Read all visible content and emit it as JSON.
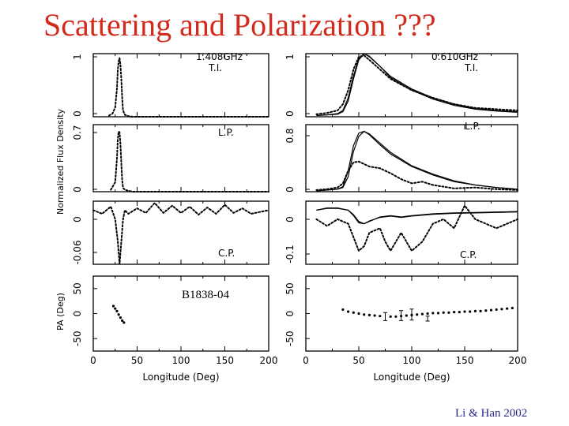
{
  "slide": {
    "title": "Scattering and Polarization ???",
    "credit": "Li & Han 2002",
    "accent_color": "#d22a1b",
    "credit_color": "#2a2a8a"
  },
  "chart_data": [
    {
      "panel": "left-ti",
      "type": "line",
      "title": "1.408GHz",
      "label": "T.I.",
      "ylabel": "Normalized Flux Density",
      "ylim": [
        0,
        1
      ],
      "yticks": [
        "1",
        "0"
      ],
      "xlim": [
        0,
        200
      ],
      "series": [
        {
          "name": "1.408GHz",
          "style": "dotted",
          "x": [
            18,
            22,
            25,
            27,
            28,
            29,
            30,
            31,
            32,
            33,
            34,
            36,
            40,
            45,
            60,
            100,
            200
          ],
          "y": [
            0.02,
            0.05,
            0.15,
            0.45,
            0.75,
            0.88,
            0.93,
            0.82,
            0.6,
            0.3,
            0.1,
            0.03,
            0.01,
            0,
            0,
            0,
            0
          ]
        }
      ]
    },
    {
      "panel": "right-ti",
      "type": "line",
      "title": "0.610GHz",
      "label": "T.I.",
      "ylim": [
        0,
        1
      ],
      "yticks": [
        "1",
        "0"
      ],
      "xlim": [
        0,
        200
      ],
      "series": [
        {
          "name": "solid-a",
          "style": "solid",
          "x": [
            10,
            20,
            30,
            35,
            40,
            45,
            50,
            55,
            60,
            70,
            80,
            100,
            120,
            140,
            160,
            180,
            200
          ],
          "y": [
            0.02,
            0.03,
            0.05,
            0.1,
            0.3,
            0.65,
            0.92,
            1.0,
            0.95,
            0.8,
            0.62,
            0.42,
            0.28,
            0.18,
            0.12,
            0.09,
            0.07
          ]
        },
        {
          "name": "solid-b",
          "style": "solid",
          "x": [
            10,
            20,
            30,
            35,
            40,
            45,
            50,
            55,
            60,
            70,
            80,
            100,
            120,
            140,
            160,
            180,
            200
          ],
          "y": [
            0.02,
            0.03,
            0.04,
            0.08,
            0.25,
            0.6,
            0.9,
            1.0,
            0.96,
            0.8,
            0.64,
            0.44,
            0.3,
            0.2,
            0.13,
            0.1,
            0.08
          ]
        },
        {
          "name": "dotted",
          "style": "dotted",
          "x": [
            10,
            20,
            30,
            35,
            40,
            45,
            50,
            55,
            60,
            70,
            80,
            100,
            120,
            140,
            160,
            180,
            200
          ],
          "y": [
            0.04,
            0.06,
            0.1,
            0.2,
            0.42,
            0.75,
            0.95,
            0.97,
            0.9,
            0.75,
            0.6,
            0.42,
            0.3,
            0.2,
            0.14,
            0.12,
            0.1
          ]
        }
      ]
    },
    {
      "panel": "left-lp",
      "type": "line",
      "label": "L.P.",
      "ylim": [
        0,
        0.7
      ],
      "yticks": [
        "0.7",
        "0"
      ],
      "xlim": [
        0,
        200
      ],
      "series": [
        {
          "name": "1.408GHz",
          "style": "dotted",
          "x": [
            20,
            25,
            27,
            28,
            29,
            30,
            31,
            32,
            33,
            34,
            36,
            40,
            45,
            60,
            100,
            200
          ],
          "y": [
            0.02,
            0.1,
            0.35,
            0.55,
            0.63,
            0.62,
            0.5,
            0.3,
            0.12,
            0.04,
            0.02,
            0.01,
            0,
            0,
            0,
            0
          ]
        }
      ]
    },
    {
      "panel": "right-lp",
      "type": "line",
      "label": "L.P.",
      "ylim": [
        0,
        0.8
      ],
      "yticks": [
        "0.8",
        "0"
      ],
      "xlim": [
        0,
        200
      ],
      "series": [
        {
          "name": "solid-a",
          "style": "solid",
          "x": [
            10,
            20,
            30,
            35,
            40,
            45,
            50,
            55,
            60,
            70,
            80,
            100,
            120,
            140,
            160,
            180,
            200
          ],
          "y": [
            0.01,
            0.02,
            0.03,
            0.06,
            0.25,
            0.55,
            0.7,
            0.72,
            0.68,
            0.56,
            0.45,
            0.3,
            0.2,
            0.12,
            0.08,
            0.05,
            0.03
          ]
        },
        {
          "name": "solid-b",
          "style": "solid",
          "x": [
            10,
            20,
            30,
            35,
            40,
            45,
            50,
            55,
            60,
            70,
            80,
            100,
            120,
            140,
            160,
            180,
            200
          ],
          "y": [
            0.01,
            0.02,
            0.03,
            0.05,
            0.18,
            0.48,
            0.66,
            0.72,
            0.69,
            0.58,
            0.47,
            0.31,
            0.21,
            0.13,
            0.08,
            0.05,
            0.03
          ]
        },
        {
          "name": "dotted",
          "style": "dotted",
          "x": [
            10,
            20,
            30,
            35,
            40,
            45,
            50,
            55,
            60,
            70,
            80,
            90,
            100,
            110,
            120,
            140,
            160,
            180,
            200
          ],
          "y": [
            0.02,
            0.03,
            0.05,
            0.1,
            0.25,
            0.35,
            0.36,
            0.33,
            0.3,
            0.28,
            0.22,
            0.15,
            0.1,
            0.12,
            0.08,
            0.04,
            0.05,
            0.03,
            0.02
          ]
        }
      ]
    },
    {
      "panel": "left-cp",
      "type": "line",
      "label": "C.P.",
      "ylim": [
        -0.06,
        0.01
      ],
      "yticks": [
        "0",
        "-0.06"
      ],
      "xlim": [
        0,
        200
      ],
      "series": [
        {
          "name": "1.408GHz",
          "style": "dotted",
          "x": [
            0,
            10,
            20,
            25,
            28,
            30,
            32,
            34,
            36,
            40,
            50,
            60,
            70,
            80,
            90,
            100,
            110,
            120,
            130,
            140,
            150,
            160,
            170,
            180,
            200
          ],
          "y": [
            0,
            -0.004,
            0.004,
            -0.01,
            -0.035,
            -0.06,
            -0.035,
            -0.01,
            0,
            -0.004,
            0.002,
            -0.003,
            0.008,
            -0.003,
            0.005,
            -0.003,
            0.004,
            -0.005,
            0.003,
            -0.004,
            0.006,
            -0.003,
            0.002,
            -0.004,
            0
          ]
        }
      ]
    },
    {
      "panel": "right-cp",
      "type": "line",
      "label": "C.P.",
      "ylim": [
        -0.12,
        0.02
      ],
      "yticks": [
        "0",
        "-0.1"
      ],
      "xlim": [
        0,
        200
      ],
      "series": [
        {
          "name": "solid-a",
          "style": "solid",
          "x": [
            10,
            20,
            30,
            40,
            45,
            50,
            55,
            60,
            70,
            80,
            90,
            100,
            120,
            140,
            160,
            180,
            200
          ],
          "y": [
            0,
            0.005,
            0.005,
            0,
            -0.01,
            -0.025,
            -0.03,
            -0.025,
            -0.015,
            -0.012,
            -0.015,
            -0.012,
            -0.008,
            -0.006,
            -0.005,
            -0.004,
            -0.003
          ]
        },
        {
          "name": "solid-b",
          "style": "solid",
          "x": [
            10,
            20,
            30,
            40,
            45,
            50,
            55,
            60,
            70,
            80,
            90,
            100,
            120,
            140,
            160,
            180,
            200
          ],
          "y": [
            0,
            0.004,
            0.004,
            0,
            -0.012,
            -0.028,
            -0.03,
            -0.024,
            -0.016,
            -0.013,
            -0.016,
            -0.013,
            -0.009,
            -0.007,
            -0.006,
            -0.005,
            -0.004
          ]
        },
        {
          "name": "dotted",
          "style": "dotted",
          "x": [
            10,
            20,
            30,
            40,
            45,
            50,
            55,
            60,
            70,
            75,
            80,
            90,
            100,
            110,
            120,
            130,
            140,
            150,
            160,
            170,
            180,
            190,
            200
          ],
          "y": [
            -0.02,
            -0.035,
            -0.02,
            -0.03,
            -0.06,
            -0.09,
            -0.08,
            -0.05,
            -0.04,
            -0.07,
            -0.09,
            -0.05,
            -0.09,
            -0.07,
            -0.03,
            -0.02,
            -0.04,
            0.01,
            -0.02,
            -0.03,
            -0.04,
            -0.03,
            -0.02
          ]
        }
      ]
    },
    {
      "panel": "left-pa",
      "type": "scatter",
      "ylabel": "PA (Deg)",
      "annotation": "B1838-04",
      "ylim": [
        -75,
        75
      ],
      "yticks": [
        "50",
        "0",
        "-50"
      ],
      "xlim": [
        0,
        200
      ],
      "xticks": [
        "0",
        "50",
        "100",
        "150",
        "200"
      ],
      "xlabel": "Longitude (Deg)",
      "points": {
        "x": [
          23,
          25,
          27,
          29,
          31,
          33,
          35
        ],
        "y": [
          15,
          10,
          5,
          -2,
          -8,
          -14,
          -18
        ]
      }
    },
    {
      "panel": "right-pa",
      "type": "scatter",
      "ylim": [
        -75,
        75
      ],
      "yticks": [
        "50",
        "0",
        "-50"
      ],
      "xlim": [
        0,
        200
      ],
      "xticks": [
        "0",
        "50",
        "100",
        "150",
        "200"
      ],
      "xlabel": "Longitude (Deg)",
      "points": {
        "x": [
          35,
          40,
          45,
          50,
          55,
          60,
          65,
          70,
          80,
          85,
          90,
          95,
          100,
          105,
          110,
          115,
          120,
          125,
          130,
          135,
          140,
          145,
          150,
          155,
          160,
          165,
          170,
          175,
          180,
          185,
          190,
          195
        ],
        "y": [
          8,
          4,
          2,
          0,
          -2,
          -3,
          -4,
          -5,
          -6,
          -6,
          -5,
          -4,
          -3,
          -2,
          -1,
          0,
          1,
          1,
          2,
          2,
          3,
          3,
          4,
          4,
          5,
          5,
          6,
          7,
          8,
          9,
          10,
          11
        ]
      },
      "error_bars": {
        "x": [
          75,
          90,
          100,
          115
        ],
        "y": [
          -6,
          -4,
          -2,
          -10
        ],
        "err": [
          8,
          10,
          11,
          5
        ]
      }
    }
  ]
}
